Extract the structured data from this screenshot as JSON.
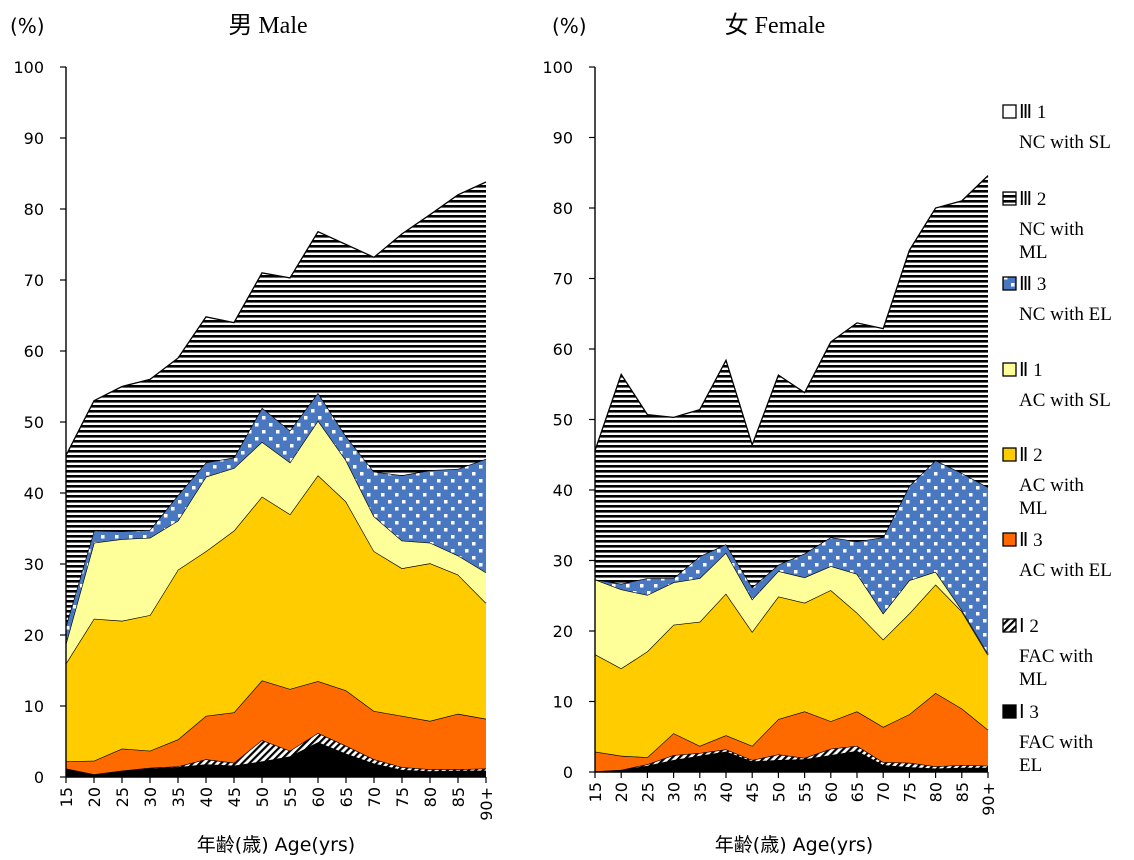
{
  "charts": [
    {
      "title": "男 Male",
      "ylabel": "(%)",
      "xlabel": "年齢(歳) Age(yrs)"
    },
    {
      "title": "女 Female",
      "ylabel": "(%)",
      "xlabel": "年齢(歳) Age(yrs)"
    }
  ],
  "legend": [
    {
      "symbol": "Ⅲ 1",
      "desc": [
        "NC with SL"
      ]
    },
    {
      "symbol": "Ⅲ 2",
      "desc": [
        "NC with",
        "ML"
      ]
    },
    {
      "symbol": "Ⅲ 3",
      "desc": [
        "NC with EL"
      ]
    },
    {
      "symbol": "Ⅱ 1",
      "desc": [
        "AC with SL"
      ]
    },
    {
      "symbol": "Ⅱ 2",
      "desc": [
        "AC with",
        "ML"
      ]
    },
    {
      "symbol": "Ⅱ 3",
      "desc": [
        "AC with EL"
      ]
    },
    {
      "symbol": "Ⅰ 2",
      "desc": [
        "FAC with",
        "ML"
      ]
    },
    {
      "symbol": "Ⅰ 3",
      "desc": [
        "FAC with",
        "EL"
      ]
    }
  ],
  "colors": {
    "I3": "#000000",
    "I2": "#ffffff",
    "II3": "#ff6a00",
    "II2": "#ffcc00",
    "II1": "#ffff99",
    "III3": "#4a78c0",
    "III2": "#ffffff",
    "III1": "#ffffff"
  },
  "chart_data": [
    {
      "type": "area",
      "stacked": true,
      "title": "男 Male",
      "xlabel": "年齢(歳) Age(yrs)",
      "ylabel": "(%)",
      "ylim": [
        0,
        100
      ],
      "yticks": [
        0,
        10,
        20,
        30,
        40,
        50,
        60,
        70,
        80,
        90,
        100
      ],
      "categories": [
        "15",
        "20",
        "25",
        "30",
        "35",
        "40",
        "45",
        "50",
        "55",
        "60",
        "65",
        "70",
        "75",
        "80",
        "85",
        "90+"
      ],
      "series": [
        {
          "name": "Ⅰ 3",
          "values": [
            1.2,
            0.4,
            0.9,
            1.2,
            1.4,
            1.8,
            1.6,
            2.2,
            2.9,
            4.9,
            3.3,
            1.9,
            1.0,
            0.8,
            0.9,
            0.9
          ]
        },
        {
          "name": "Ⅰ 2",
          "values": [
            0.0,
            0.0,
            0.0,
            0.1,
            0.1,
            0.7,
            0.4,
            3.0,
            0.8,
            1.3,
            1.1,
            0.6,
            0.4,
            0.3,
            0.2,
            0.3
          ]
        },
        {
          "name": "Ⅱ 3",
          "values": [
            1.0,
            1.9,
            3.1,
            2.4,
            3.8,
            6.1,
            7.1,
            8.4,
            8.7,
            7.3,
            7.8,
            6.8,
            7.2,
            6.8,
            7.8,
            7.0
          ]
        },
        {
          "name": "Ⅱ 2",
          "values": [
            13.8,
            20.0,
            18.0,
            19.1,
            23.9,
            23.2,
            25.6,
            25.9,
            24.6,
            29.0,
            26.6,
            22.5,
            20.8,
            22.2,
            19.6,
            16.3
          ]
        },
        {
          "name": "Ⅱ 1",
          "values": [
            2.8,
            10.7,
            11.5,
            10.9,
            6.9,
            10.5,
            8.8,
            7.7,
            7.3,
            7.7,
            5.8,
            4.9,
            3.9,
            2.9,
            2.7,
            4.3
          ]
        },
        {
          "name": "Ⅲ 3",
          "values": [
            2.5,
            1.7,
            1.1,
            1.1,
            3.6,
            2.0,
            1.5,
            4.8,
            4.5,
            3.9,
            3.4,
            6.3,
            9.2,
            10.2,
            12.2,
            16.0
          ]
        },
        {
          "name": "Ⅲ 2",
          "values": [
            24.0,
            18.3,
            20.4,
            21.2,
            19.3,
            20.5,
            19.0,
            19.0,
            21.5,
            22.7,
            27.0,
            30.2,
            34.0,
            36.0,
            38.6,
            39.0
          ]
        }
      ]
    },
    {
      "type": "area",
      "stacked": true,
      "title": "女 Female",
      "xlabel": "年齢(歳) Age(yrs)",
      "ylabel": "(%)",
      "ylim": [
        0,
        100
      ],
      "yticks": [
        0,
        10,
        20,
        30,
        40,
        50,
        60,
        70,
        80,
        90,
        100
      ],
      "categories": [
        "15",
        "20",
        "25",
        "30",
        "35",
        "40",
        "45",
        "50",
        "55",
        "60",
        "65",
        "70",
        "75",
        "80",
        "85",
        "90+"
      ],
      "series": [
        {
          "name": "Ⅰ 3",
          "values": [
            0.1,
            0.3,
            0.9,
            1.7,
            2.3,
            2.9,
            1.5,
            1.7,
            1.8,
            2.4,
            3.0,
            1.0,
            0.7,
            0.5,
            0.6,
            0.6
          ]
        },
        {
          "name": "Ⅰ 2",
          "values": [
            0.0,
            0.0,
            0.2,
            0.7,
            0.4,
            0.3,
            0.2,
            0.8,
            0.2,
            0.9,
            0.7,
            0.4,
            0.6,
            0.3,
            0.4,
            0.3
          ]
        },
        {
          "name": "Ⅱ 3",
          "values": [
            2.8,
            2.0,
            1.0,
            3.1,
            1.0,
            2.0,
            2.0,
            5.0,
            6.6,
            3.9,
            4.9,
            5.0,
            6.9,
            10.4,
            8.0,
            5.1
          ]
        },
        {
          "name": "Ⅱ 2",
          "values": [
            13.8,
            12.4,
            15.0,
            15.4,
            17.6,
            20.1,
            16.2,
            17.4,
            15.4,
            18.6,
            14.0,
            12.4,
            14.3,
            15.4,
            13.8,
            10.6
          ]
        },
        {
          "name": "Ⅱ 1",
          "values": [
            10.6,
            11.2,
            8.0,
            6.0,
            6.2,
            5.8,
            4.6,
            3.6,
            3.6,
            3.4,
            5.5,
            3.7,
            4.7,
            1.8,
            0.2,
            0.2
          ]
        },
        {
          "name": "Ⅲ 3",
          "values": [
            0.0,
            0.8,
            2.4,
            0.6,
            3.1,
            1.2,
            1.7,
            0.9,
            3.4,
            4.1,
            4.6,
            10.8,
            13.4,
            15.8,
            19.4,
            23.6
          ]
        },
        {
          "name": "Ⅲ 2",
          "values": [
            18.3,
            29.7,
            23.2,
            22.8,
            20.8,
            26.1,
            20.2,
            26.9,
            22.8,
            27.7,
            31.0,
            29.6,
            33.4,
            35.8,
            38.6,
            44.2
          ]
        }
      ]
    }
  ]
}
